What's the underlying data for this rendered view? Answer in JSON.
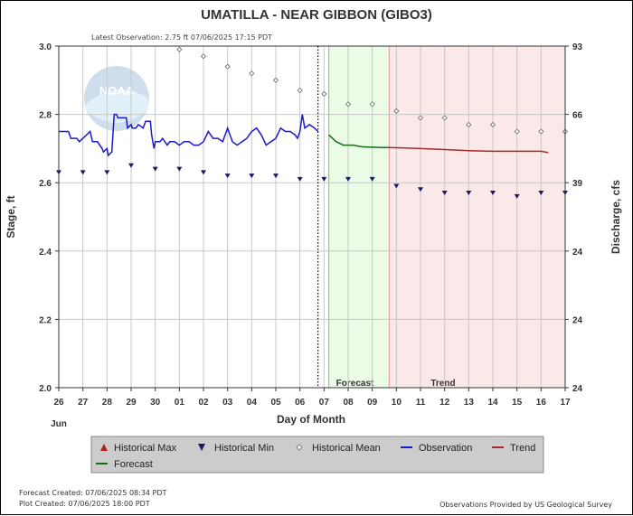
{
  "header": {
    "title": "UMATILLA - NEAR GIBBON  (GIBO3)",
    "latest_observation": "Latest Observation: 2.75 ft 07/06/2025 17:15 PDT"
  },
  "logo_text": "NOAA",
  "footer": {
    "forecast_created": "Forecast Created: 07/06/2025 08:34 PDT",
    "plot_created": "Plot Created: 07/06/2025 18:00 PDT",
    "provider": "Observations Provided by US Geological Survey"
  },
  "colors": {
    "observation": "#1a1acc",
    "forecast": "#1a6b1a",
    "trend": "#a52a2a",
    "historical_min": "#1a1a66",
    "historical_max": "#b22222",
    "forecast_bg": "#eafbe6",
    "trend_bg": "#fbe8e8",
    "legend_bg": "#cccccc"
  },
  "chart_data": {
    "type": "line",
    "xlabel": "Day of Month",
    "ylabel_left": "Stage, ft",
    "ylabel_right": "Discharge, cfs",
    "x_unit": "day offset from Jun 26",
    "x_ticks": [
      "26",
      "27",
      "28",
      "29",
      "30",
      "01",
      "02",
      "03",
      "04",
      "05",
      "06",
      "07",
      "08",
      "09",
      "10",
      "11",
      "12",
      "13",
      "14",
      "15",
      "16",
      "17"
    ],
    "x_month_label": "Jun",
    "xlim": [
      0,
      21
    ],
    "ylim": [
      2.0,
      3.0
    ],
    "y_ticks": [
      "2.0",
      "2.2",
      "2.4",
      "2.6",
      "2.8",
      "3.0"
    ],
    "y2_ticks": [
      "24",
      "24",
      "24",
      "39",
      "66",
      "93"
    ],
    "grid": true,
    "regions": [
      {
        "name": "Forecast",
        "start": 11.2,
        "end": 13.7
      },
      {
        "name": "Trend",
        "start": 13.7,
        "end": 21
      }
    ],
    "latest_observation_x": 10.75,
    "legend": [
      "Historical Max",
      "Historical Min",
      "Historical Mean",
      "Observation",
      "Trend",
      "Forecast"
    ],
    "historical_mean": {
      "x": [
        5,
        6,
        7,
        8,
        9,
        10,
        11,
        12,
        13,
        14,
        15,
        16,
        17,
        18,
        19,
        20,
        21
      ],
      "y": [
        2.99,
        2.97,
        2.94,
        2.92,
        2.9,
        2.87,
        2.86,
        2.83,
        2.83,
        2.81,
        2.79,
        2.79,
        2.77,
        2.77,
        2.75,
        2.75,
        2.75
      ]
    },
    "historical_min": {
      "x": [
        0,
        1,
        2,
        3,
        4,
        5,
        6,
        7,
        8,
        9,
        10,
        11,
        12,
        13,
        14,
        15,
        16,
        17,
        18,
        19,
        20,
        21
      ],
      "y": [
        2.63,
        2.63,
        2.63,
        2.65,
        2.64,
        2.64,
        2.63,
        2.62,
        2.62,
        2.62,
        2.61,
        2.61,
        2.61,
        2.61,
        2.59,
        2.58,
        2.57,
        2.57,
        2.57,
        2.56,
        2.57,
        2.57
      ]
    },
    "observation": {
      "x": [
        0,
        0.4,
        0.5,
        0.75,
        0.85,
        1.0,
        1.3,
        1.4,
        1.6,
        1.8,
        1.85,
        2.0,
        2.05,
        2.2,
        2.3,
        2.4,
        2.45,
        2.8,
        2.85,
        3.0,
        3.05,
        3.2,
        3.3,
        3.5,
        3.6,
        3.8,
        3.85,
        3.95,
        4.0,
        4.2,
        4.3,
        4.5,
        4.6,
        4.8,
        5.0,
        5.2,
        5.4,
        5.6,
        5.8,
        6.0,
        6.2,
        6.4,
        6.6,
        6.8,
        7.0,
        7.2,
        7.4,
        7.6,
        7.8,
        8.0,
        8.2,
        8.4,
        8.6,
        8.8,
        9.0,
        9.2,
        9.4,
        9.6,
        9.8,
        9.9,
        10.0,
        10.1,
        10.2,
        10.4,
        10.6,
        10.75
      ],
      "y": [
        2.75,
        2.75,
        2.73,
        2.73,
        2.72,
        2.73,
        2.75,
        2.72,
        2.72,
        2.7,
        2.69,
        2.7,
        2.68,
        2.69,
        2.8,
        2.8,
        2.79,
        2.79,
        2.76,
        2.77,
        2.76,
        2.76,
        2.77,
        2.76,
        2.78,
        2.78,
        2.74,
        2.7,
        2.72,
        2.72,
        2.73,
        2.71,
        2.72,
        2.72,
        2.71,
        2.72,
        2.72,
        2.71,
        2.71,
        2.72,
        2.75,
        2.73,
        2.73,
        2.72,
        2.76,
        2.72,
        2.71,
        2.72,
        2.73,
        2.75,
        2.76,
        2.74,
        2.71,
        2.72,
        2.73,
        2.76,
        2.75,
        2.75,
        2.74,
        2.73,
        2.75,
        2.8,
        2.76,
        2.77,
        2.76,
        2.75
      ]
    },
    "forecast": {
      "x": [
        11.2,
        11.5,
        11.8,
        12.2,
        12.6,
        13.0,
        13.4,
        13.7
      ],
      "y": [
        2.74,
        2.72,
        2.71,
        2.71,
        2.705,
        2.704,
        2.703,
        2.703
      ]
    },
    "trend": {
      "x": [
        13.7,
        14.2,
        15.0,
        16.0,
        17.0,
        18.0,
        19.0,
        20.0,
        20.3
      ],
      "y": [
        2.703,
        2.702,
        2.7,
        2.697,
        2.694,
        2.692,
        2.692,
        2.692,
        2.688
      ]
    }
  }
}
